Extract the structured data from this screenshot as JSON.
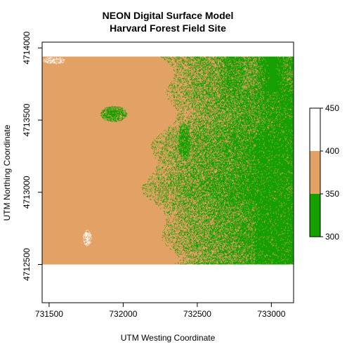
{
  "chart_data": {
    "type": "heatmap",
    "title_line1": "NEON Digital Surface Model",
    "title_line2": "Harvard Forest Field Site",
    "xlabel": "UTM Westing Coordinate",
    "ylabel": "UTM Northing Coordinate",
    "xlim": [
      731453,
      733150
    ],
    "ylim": [
      4712235,
      4714040
    ],
    "xticks": [
      731500,
      732000,
      732500,
      733000
    ],
    "yticks": [
      4712500,
      4713000,
      4713500,
      4714000
    ],
    "raster_extent": {
      "x": [
        731453,
        733150
      ],
      "y": [
        4712500,
        4713940
      ]
    },
    "legend": {
      "breaks": [
        300,
        350,
        400,
        450
      ],
      "colors": [
        "#16a000",
        "#e3a265",
        "#ffffff"
      ],
      "position": "right"
    },
    "patches": [
      {
        "class": 1,
        "kind": "base_region",
        "x": [
          731453,
          732345
        ],
        "y": [
          4712500,
          4713940
        ]
      },
      {
        "class": 2,
        "kind": "white_cluster",
        "center": [
          731530,
          4713915
        ],
        "spread": [
          75,
          25
        ],
        "density": 0.55
      },
      {
        "class": 2,
        "kind": "white_cluster",
        "center": [
          731755,
          4712685
        ],
        "spread": [
          30,
          55
        ],
        "density": 0.6
      },
      {
        "class": 0,
        "kind": "green_patch",
        "center": [
          731935,
          4713545
        ],
        "spread": [
          90,
          55
        ],
        "density": 0.85
      },
      {
        "class": 0,
        "kind": "green_band",
        "center": [
          732410,
          4713350
        ],
        "spread": [
          40,
          130
        ],
        "density": 0.7
      }
    ]
  }
}
